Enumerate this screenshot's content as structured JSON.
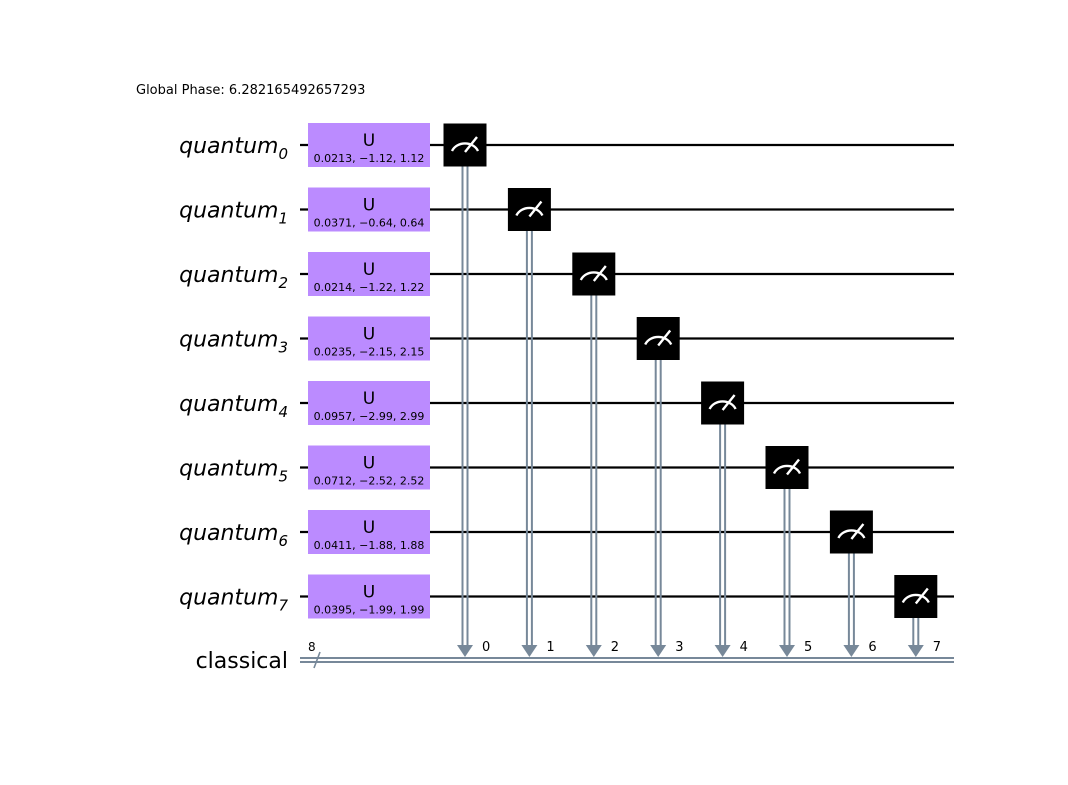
{
  "global_phase": "Global Phase: 6.282165492657293",
  "qubits": [
    {
      "name": "quantum",
      "index": "0",
      "gate": {
        "label": "U",
        "params": "0.0213, −1.12, 1.12"
      }
    },
    {
      "name": "quantum",
      "index": "1",
      "gate": {
        "label": "U",
        "params": "0.0371, −0.64, 0.64"
      }
    },
    {
      "name": "quantum",
      "index": "2",
      "gate": {
        "label": "U",
        "params": "0.0214, −1.22, 1.22"
      }
    },
    {
      "name": "quantum",
      "index": "3",
      "gate": {
        "label": "U",
        "params": "0.0235, −2.15, 2.15"
      }
    },
    {
      "name": "quantum",
      "index": "4",
      "gate": {
        "label": "U",
        "params": "0.0957, −2.99, 2.99"
      }
    },
    {
      "name": "quantum",
      "index": "5",
      "gate": {
        "label": "U",
        "params": "0.0712, −2.52, 2.52"
      }
    },
    {
      "name": "quantum",
      "index": "6",
      "gate": {
        "label": "U",
        "params": "0.0411, −1.88, 1.88"
      }
    },
    {
      "name": "quantum",
      "index": "7",
      "gate": {
        "label": "U",
        "params": "0.0395, −1.99, 1.99"
      }
    }
  ],
  "classical": {
    "name": "classical",
    "size": "8"
  },
  "measure_targets": [
    "0",
    "1",
    "2",
    "3",
    "4",
    "5",
    "6",
    "7"
  ],
  "colors": {
    "u_gate": "#bb8bff",
    "measure_box": "#000000",
    "classical_wire": "#778899",
    "wire": "#000000"
  }
}
